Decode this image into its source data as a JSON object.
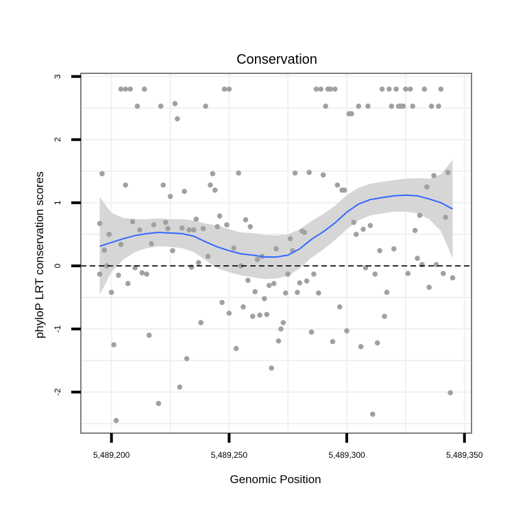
{
  "chart_data": {
    "type": "scatter",
    "title": "Conservation",
    "xlabel": "Genomic Position",
    "ylabel": "phyloP LRT conservation scores",
    "xlim": [
      5489187,
      5489353
    ],
    "ylim": [
      -2.65,
      3.05
    ],
    "x_ticks": [
      5489200,
      5489250,
      5489300,
      5489350
    ],
    "x_tick_labels": [
      "5,489,200",
      "5,489,250",
      "5,489,300",
      "5,489,350"
    ],
    "y_ticks": [
      -2,
      -1,
      0,
      1,
      2,
      3
    ],
    "y_tick_labels": [
      "-2",
      "-1",
      "0",
      "1",
      "2",
      "3"
    ],
    "reference_line": {
      "y": 0,
      "style": "dashed"
    },
    "colors": {
      "points": "#a0a0a0",
      "smooth_line": "#3366ff",
      "ribbon": "#d4d4d4",
      "grid": "#f0f0f0",
      "frame": "#7f7f7f"
    },
    "points": [
      [
        5489195,
        0.67
      ],
      [
        5489195,
        -0.13
      ],
      [
        5489196,
        1.46
      ],
      [
        5489197,
        0.25
      ],
      [
        5489198,
        0.0
      ],
      [
        5489199,
        0.5
      ],
      [
        5489200,
        -0.42
      ],
      [
        5489201,
        -1.25
      ],
      [
        5489202,
        -2.45
      ],
      [
        5489203,
        -0.15
      ],
      [
        5489204,
        0.34
      ],
      [
        5489204,
        2.8
      ],
      [
        5489206,
        1.28
      ],
      [
        5489206,
        2.8
      ],
      [
        5489207,
        -0.28
      ],
      [
        5489208,
        2.8
      ],
      [
        5489209,
        0.7
      ],
      [
        5489210,
        -0.03
      ],
      [
        5489211,
        2.53
      ],
      [
        5489212,
        0.57
      ],
      [
        5489213,
        -0.11
      ],
      [
        5489214,
        2.8
      ],
      [
        5489215,
        -0.13
      ],
      [
        5489216,
        -1.1
      ],
      [
        5489217,
        0.35
      ],
      [
        5489218,
        0.65
      ],
      [
        5489220,
        -2.18
      ],
      [
        5489221,
        2.53
      ],
      [
        5489222,
        1.28
      ],
      [
        5489223,
        0.69
      ],
      [
        5489224,
        0.59
      ],
      [
        5489225,
        1.1
      ],
      [
        5489226,
        0.24
      ],
      [
        5489227,
        2.57
      ],
      [
        5489228,
        2.33
      ],
      [
        5489229,
        -1.92
      ],
      [
        5489230,
        0.6
      ],
      [
        5489231,
        1.18
      ],
      [
        5489232,
        -1.47
      ],
      [
        5489233,
        0.57
      ],
      [
        5489234,
        -0.02
      ],
      [
        5489235,
        0.57
      ],
      [
        5489236,
        0.74
      ],
      [
        5489237,
        0.05
      ],
      [
        5489238,
        -0.9
      ],
      [
        5489239,
        0.59
      ],
      [
        5489240,
        2.53
      ],
      [
        5489241,
        0.15
      ],
      [
        5489242,
        1.28
      ],
      [
        5489243,
        1.46
      ],
      [
        5489244,
        1.2
      ],
      [
        5489245,
        0.62
      ],
      [
        5489246,
        0.79
      ],
      [
        5489247,
        -0.58
      ],
      [
        5489248,
        2.8
      ],
      [
        5489249,
        0.65
      ],
      [
        5489250,
        2.8
      ],
      [
        5489250,
        -0.75
      ],
      [
        5489252,
        0.28
      ],
      [
        5489253,
        -1.31
      ],
      [
        5489254,
        1.47
      ],
      [
        5489255,
        0.0
      ],
      [
        5489256,
        -0.65
      ],
      [
        5489257,
        0.73
      ],
      [
        5489258,
        -0.23
      ],
      [
        5489259,
        0.62
      ],
      [
        5489260,
        -0.8
      ],
      [
        5489261,
        -0.41
      ],
      [
        5489262,
        0.1
      ],
      [
        5489263,
        -0.78
      ],
      [
        5489264,
        0.15
      ],
      [
        5489265,
        -0.52
      ],
      [
        5489266,
        -0.77
      ],
      [
        5489267,
        -0.31
      ],
      [
        5489268,
        -1.62
      ],
      [
        5489269,
        -0.28
      ],
      [
        5489270,
        0.27
      ],
      [
        5489271,
        -1.19
      ],
      [
        5489272,
        -1.0
      ],
      [
        5489273,
        -0.9
      ],
      [
        5489274,
        -0.43
      ],
      [
        5489275,
        -0.13
      ],
      [
        5489276,
        0.43
      ],
      [
        5489277,
        0.24
      ],
      [
        5489278,
        1.47
      ],
      [
        5489279,
        -0.42
      ],
      [
        5489280,
        -0.27
      ],
      [
        5489281,
        0.55
      ],
      [
        5489282,
        0.53
      ],
      [
        5489283,
        -0.24
      ],
      [
        5489284,
        1.48
      ],
      [
        5489285,
        -1.05
      ],
      [
        5489286,
        -0.13
      ],
      [
        5489287,
        2.8
      ],
      [
        5489288,
        -0.43
      ],
      [
        5489289,
        2.8
      ],
      [
        5489290,
        1.44
      ],
      [
        5489291,
        2.53
      ],
      [
        5489292,
        2.8
      ],
      [
        5489293,
        2.8
      ],
      [
        5489294,
        -1.2
      ],
      [
        5489295,
        2.8
      ],
      [
        5489296,
        1.28
      ],
      [
        5489297,
        -0.65
      ],
      [
        5489298,
        1.2
      ],
      [
        5489299,
        1.2
      ],
      [
        5489300,
        -1.03
      ],
      [
        5489301,
        2.41
      ],
      [
        5489302,
        2.41
      ],
      [
        5489303,
        0.69
      ],
      [
        5489304,
        0.5
      ],
      [
        5489305,
        2.53
      ],
      [
        5489306,
        -1.28
      ],
      [
        5489307,
        0.58
      ],
      [
        5489308,
        -0.03
      ],
      [
        5489309,
        2.53
      ],
      [
        5489310,
        0.64
      ],
      [
        5489311,
        -2.35
      ],
      [
        5489312,
        -0.13
      ],
      [
        5489313,
        -1.22
      ],
      [
        5489314,
        0.24
      ],
      [
        5489315,
        2.8
      ],
      [
        5489316,
        -0.8
      ],
      [
        5489317,
        -0.42
      ],
      [
        5489318,
        2.8
      ],
      [
        5489319,
        2.53
      ],
      [
        5489320,
        0.27
      ],
      [
        5489321,
        2.8
      ],
      [
        5489322,
        2.53
      ],
      [
        5489323,
        2.53
      ],
      [
        5489324,
        2.53
      ],
      [
        5489325,
        2.8
      ],
      [
        5489326,
        -0.12
      ],
      [
        5489327,
        2.8
      ],
      [
        5489328,
        2.53
      ],
      [
        5489329,
        0.56
      ],
      [
        5489330,
        0.12
      ],
      [
        5489331,
        0.8
      ],
      [
        5489332,
        0.02
      ],
      [
        5489333,
        2.8
      ],
      [
        5489334,
        1.25
      ],
      [
        5489335,
        -0.34
      ],
      [
        5489336,
        2.53
      ],
      [
        5489337,
        1.43
      ],
      [
        5489338,
        0.02
      ],
      [
        5489339,
        2.53
      ],
      [
        5489340,
        2.8
      ],
      [
        5489341,
        -0.12
      ],
      [
        5489342,
        0.77
      ],
      [
        5489343,
        1.48
      ],
      [
        5489344,
        -2.01
      ],
      [
        5489345,
        -0.19
      ]
    ],
    "smooth": {
      "x": [
        5489195,
        5489200,
        5489205,
        5489210,
        5489215,
        5489220,
        5489225,
        5489230,
        5489235,
        5489240,
        5489245,
        5489250,
        5489255,
        5489260,
        5489265,
        5489270,
        5489275,
        5489280,
        5489285,
        5489290,
        5489295,
        5489300,
        5489305,
        5489310,
        5489315,
        5489320,
        5489325,
        5489330,
        5489335,
        5489340,
        5489345
      ],
      "y": [
        0.31,
        0.37,
        0.43,
        0.48,
        0.51,
        0.53,
        0.52,
        0.51,
        0.47,
        0.38,
        0.3,
        0.24,
        0.19,
        0.17,
        0.14,
        0.14,
        0.17,
        0.27,
        0.42,
        0.54,
        0.68,
        0.85,
        0.98,
        1.05,
        1.08,
        1.11,
        1.12,
        1.11,
        1.06,
        1.0,
        0.9
      ],
      "lower": [
        -0.46,
        -0.1,
        0.1,
        0.22,
        0.28,
        0.31,
        0.3,
        0.28,
        0.22,
        0.09,
        -0.04,
        -0.1,
        -0.15,
        -0.18,
        -0.21,
        -0.2,
        -0.16,
        -0.04,
        0.13,
        0.26,
        0.41,
        0.58,
        0.72,
        0.8,
        0.83,
        0.86,
        0.86,
        0.83,
        0.74,
        0.55,
        0.12
      ],
      "upper": [
        1.09,
        0.84,
        0.76,
        0.74,
        0.74,
        0.75,
        0.74,
        0.74,
        0.72,
        0.67,
        0.64,
        0.58,
        0.53,
        0.52,
        0.49,
        0.48,
        0.5,
        0.58,
        0.71,
        0.82,
        0.95,
        1.12,
        1.24,
        1.3,
        1.33,
        1.36,
        1.38,
        1.39,
        1.38,
        1.45,
        1.68
      ]
    }
  }
}
